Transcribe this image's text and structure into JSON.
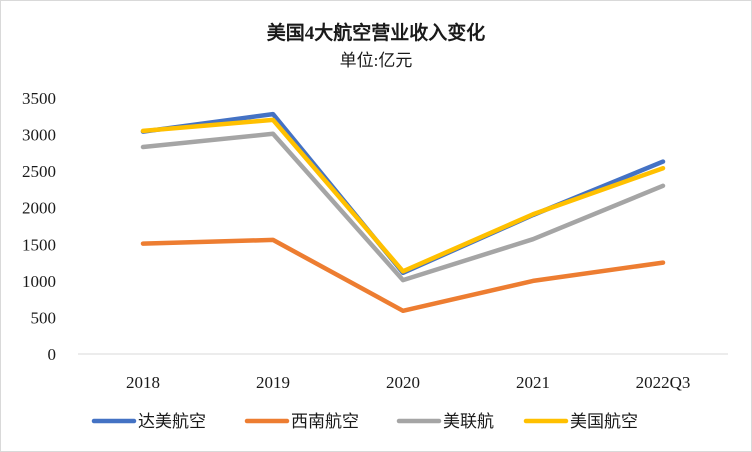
{
  "chart_data": {
    "type": "line",
    "title": "美国4大航空营业收入变化",
    "subtitle": "单位:亿元",
    "categories": [
      "2018",
      "2019",
      "2020",
      "2021",
      "2022Q3"
    ],
    "yticks": [
      "0",
      "500",
      "1000",
      "1500",
      "2000",
      "2500",
      "3000",
      "3500"
    ],
    "ylim": [
      0,
      3500
    ],
    "grid": false,
    "legend_position": "bottom",
    "series": [
      {
        "name": "达美航空",
        "color": "#4472c4",
        "values": [
          3040,
          3280,
          1110,
          1900,
          2630
        ]
      },
      {
        "name": "西南航空",
        "color": "#ed7d31",
        "values": [
          1510,
          1560,
          590,
          1000,
          1250
        ]
      },
      {
        "name": "美联航",
        "color": "#a5a5a5",
        "values": [
          2830,
          3010,
          1010,
          1570,
          2300
        ]
      },
      {
        "name": "美国航空",
        "color": "#ffc000",
        "values": [
          3050,
          3200,
          1130,
          1910,
          2540
        ]
      }
    ]
  }
}
